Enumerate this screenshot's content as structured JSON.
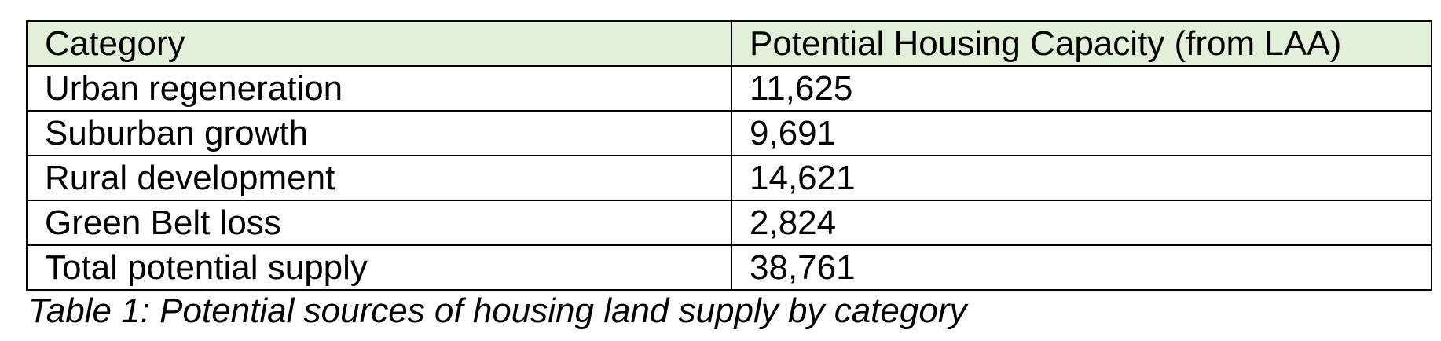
{
  "table": {
    "header": [
      "Category",
      "Potential Housing Capacity (from LAA)"
    ],
    "rows": [
      [
        "Urban regeneration",
        "11,625"
      ],
      [
        "Suburban growth",
        "9,691"
      ],
      [
        "Rural development",
        "14,621"
      ],
      [
        "Green Belt loss",
        "2,824"
      ],
      [
        "Total potential supply",
        "38,761"
      ]
    ]
  },
  "caption": "Table 1: Potential sources of housing land supply by category"
}
